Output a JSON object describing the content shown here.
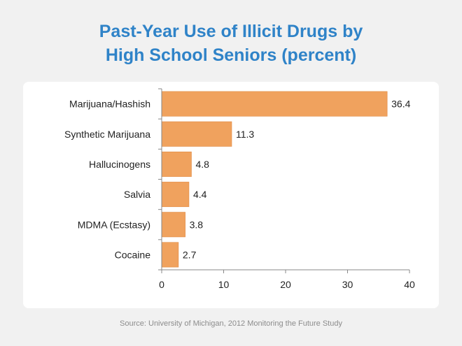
{
  "title_line1": "Past-Year Use of Illicit Drugs by",
  "title_line2": "High School Seniors (percent)",
  "source": "Source: University of Michigan, 2012 Monitoring the Future Study",
  "colors": {
    "bar": "#f0a25e",
    "bar_stroke": "#e08b45",
    "title": "#2f83c8"
  },
  "chart_data": {
    "type": "bar",
    "orientation": "horizontal",
    "categories": [
      "Marijuana/Hashish",
      "Synthetic Marijuana",
      "Hallucinogens",
      "Salvia",
      "MDMA (Ecstasy)",
      "Cocaine"
    ],
    "values": [
      36.4,
      11.3,
      4.8,
      4.4,
      3.8,
      2.7
    ],
    "data_labels": [
      "36.4",
      "11.3",
      "4.8",
      "4.4",
      "3.8",
      "2.7"
    ],
    "xlim": [
      0,
      40
    ],
    "xticks": [
      0,
      10,
      20,
      30,
      40
    ],
    "grid": false,
    "legend": "none"
  }
}
